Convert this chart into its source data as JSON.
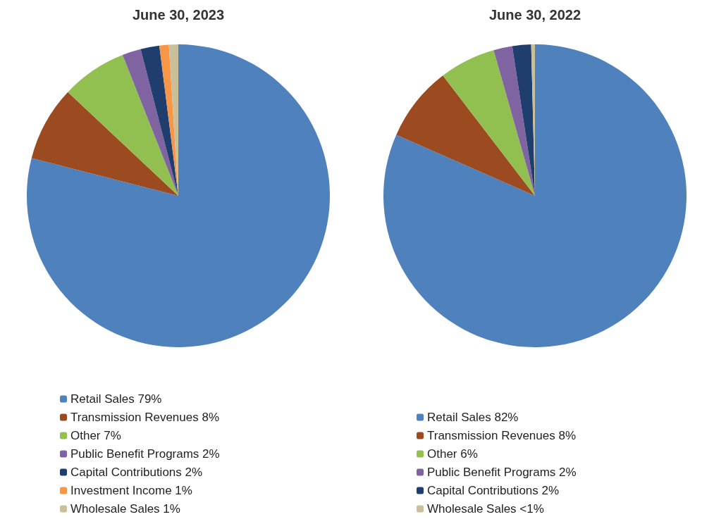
{
  "chart_data": [
    {
      "type": "pie",
      "title": "June 30, 2023",
      "categories": [
        "Retail Sales 79%",
        "Transmission Revenues 8%",
        "Other 7%",
        "Public Benefit Programs 2%",
        "Capital Contributions 2%",
        "Investment Income 1%",
        "Wholesale Sales 1%"
      ],
      "values": [
        79,
        8,
        7,
        2,
        2,
        1,
        1
      ],
      "colors": [
        "#4f81bd",
        "#9c4a1f",
        "#92c050",
        "#8064a2",
        "#1f3e6e",
        "#f79646",
        "#c9c09a"
      ],
      "legend": "bottom"
    },
    {
      "type": "pie",
      "title": "June 30, 2022",
      "categories": [
        "Retail Sales 82%",
        "Transmission Revenues 8%",
        "Other 6%",
        "Public Benefit Programs 2%",
        "Capital Contributions 2%",
        "Wholesale Sales <1%"
      ],
      "values": [
        81.6,
        8,
        6,
        2,
        2,
        0.4
      ],
      "colors": [
        "#4f81bd",
        "#9c4a1f",
        "#92c050",
        "#8064a2",
        "#1f3e6e",
        "#c9c09a"
      ],
      "legend": "bottom"
    }
  ]
}
